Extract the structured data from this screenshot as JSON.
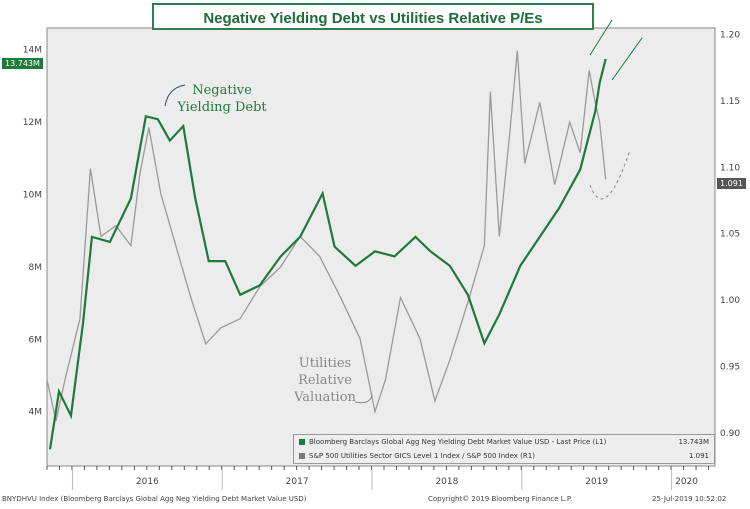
{
  "title": "Negative Yielding Debt vs Utilities Relative P/Es",
  "colors": {
    "green": "#1e7a3c",
    "gray": "#9a9a9a",
    "bg": "#ececec"
  },
  "annotations": {
    "neg_debt": "Negative Yielding Debt",
    "utilities": "Utilities Relative Valuation"
  },
  "legend": [
    {
      "label": "Bloomberg Barclays Global Agg Neg Yielding Debt Market Value USD - Last Price (L1)",
      "value": "13.743M"
    },
    {
      "label": "S&P 500 Utilities Sector GICS Level 1 Index / S&P 500 Index (R1)",
      "value": "1.091"
    }
  ],
  "footer": {
    "left": "BNYDHVU Index (Bloomberg Barclays Global Agg Neg Yielding Debt Market Value USD)",
    "center": "Copyright© 2019 Bloomberg Finance L.P.",
    "right": "25-Jul-2019 10:52:02"
  },
  "last_labels": {
    "left": "13.743M",
    "right": "1.091"
  },
  "chart_data": {
    "type": "line",
    "title": "Negative Yielding Debt vs Utilities Relative P/Es",
    "x_ticks": [
      "2016",
      "2017",
      "2018",
      "2019",
      "2020"
    ],
    "xlim": [
      2015.83,
      2020.29
    ],
    "left_axis": {
      "ticks": [
        "4M",
        "6M",
        "8M",
        "10M",
        "12M",
        "14M"
      ],
      "ylim": [
        2.5,
        14.6
      ]
    },
    "right_axis": {
      "ticks": [
        "0.90",
        "0.95",
        "1.00",
        "1.05",
        "1.10",
        "1.15",
        "1.20"
      ],
      "ylim": [
        0.875,
        1.205
      ]
    },
    "series": [
      {
        "name": "Bloomberg Barclays Global Agg Neg Yielding Debt Market Value USD",
        "axis": "left",
        "unit": "M",
        "x": [
          2015.85,
          2015.91,
          2015.99,
          2016.07,
          2016.13,
          2016.25,
          2016.39,
          2016.49,
          2016.57,
          2016.65,
          2016.74,
          2016.82,
          2016.91,
          2017.02,
          2017.12,
          2017.25,
          2017.39,
          2017.52,
          2017.67,
          2017.75,
          2017.89,
          2018.02,
          2018.15,
          2018.29,
          2018.39,
          2018.52,
          2018.64,
          2018.75,
          2018.85,
          2018.99,
          2019.12,
          2019.25,
          2019.39,
          2019.49,
          2019.52,
          2019.56
        ],
        "values": [
          2.96,
          4.56,
          3.89,
          6.43,
          8.83,
          8.69,
          9.89,
          12.16,
          12.08,
          11.49,
          11.89,
          9.89,
          8.16,
          8.16,
          7.23,
          7.49,
          8.29,
          8.83,
          10.03,
          8.56,
          8.03,
          8.43,
          8.29,
          8.83,
          8.43,
          8.03,
          7.23,
          5.89,
          6.69,
          8.03,
          8.83,
          9.63,
          10.69,
          12.29,
          13.09,
          13.743
        ]
      },
      {
        "name": "S&P 500 Utilities Sector GICS Level 1 Index / S&P 500 Index",
        "axis": "right",
        "x": [
          2015.83,
          2015.89,
          2015.95,
          2016.05,
          2016.12,
          2016.19,
          2016.29,
          2016.39,
          2016.45,
          2016.51,
          2016.59,
          2016.69,
          2016.79,
          2016.89,
          2016.99,
          2017.12,
          2017.25,
          2017.39,
          2017.52,
          2017.65,
          2017.79,
          2017.92,
          2018.02,
          2018.09,
          2018.19,
          2018.32,
          2018.42,
          2018.52,
          2018.65,
          2018.75,
          2018.79,
          2018.85,
          2018.92,
          2018.97,
          2019.02,
          2019.12,
          2019.22,
          2019.32,
          2019.39,
          2019.45,
          2019.49,
          2019.52,
          2019.56
        ],
        "values": [
          0.94,
          0.909,
          0.94,
          0.986,
          1.099,
          1.048,
          1.056,
          1.041,
          1.095,
          1.13,
          1.08,
          1.041,
          1.002,
          0.967,
          0.979,
          0.986,
          1.01,
          1.025,
          1.048,
          1.033,
          1.002,
          0.971,
          0.916,
          0.94,
          1.002,
          0.971,
          0.924,
          0.955,
          1.002,
          1.041,
          1.157,
          1.048,
          1.126,
          1.188,
          1.103,
          1.149,
          1.087,
          1.134,
          1.111,
          1.173,
          1.149,
          1.134,
          1.091
        ]
      }
    ]
  }
}
